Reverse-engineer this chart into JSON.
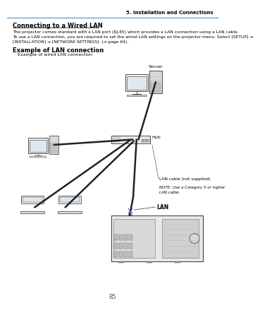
{
  "page_header_right": "5. Installation and Connections",
  "section_title": "Connecting to a Wired LAN",
  "body_line1": "The projector comes standard with a LAN port (RJ-45) which provides a LAN connection using a LAN cable.",
  "body_line2": "To use a LAN connection, you are required to set the wired LAN settings on the projector menu. Select [SETUP] →",
  "body_line3": "[INSTALLATION] → [NETWORK SETTINGS]. (→ page 64).",
  "example_title": "Example of LAN connection",
  "example_subtitle": "Example of wired LAN connection",
  "label_server": "Server",
  "label_hub": "Hub",
  "label_lan_cable": "LAN cable (not supplied)",
  "label_note": "NOTE: Use a Category 5 or higher\nLAN cable.",
  "label_lan": "LAN",
  "page_number": "85",
  "bg_color": "#ffffff",
  "header_line_color": "#5b9bd5",
  "text_color": "#000000",
  "diagram_line_color": "#333333",
  "cable_color": "#222222",
  "lan_arrow_color": "#4472c4"
}
